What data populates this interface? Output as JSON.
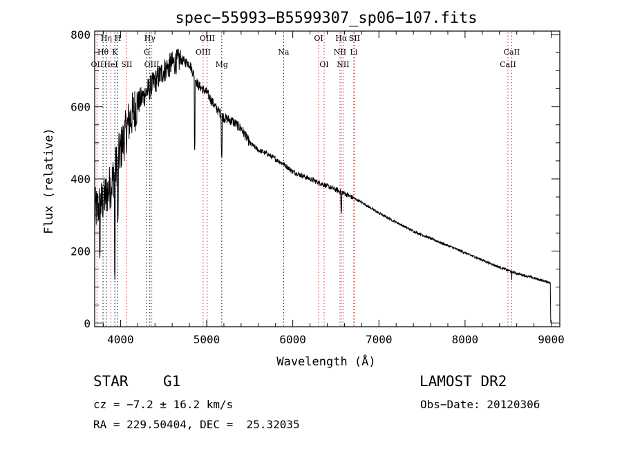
{
  "chart_data": {
    "type": "line",
    "title": "spec−55993−B5599307_sp06−107.fits",
    "xlabel": "Wavelength (Å)",
    "ylabel": "Flux (relative)",
    "xlim": [
      3700,
      9100
    ],
    "ylim": [
      -10,
      810
    ],
    "xticks": [
      4000,
      5000,
      6000,
      7000,
      8000,
      9000
    ],
    "yticks": [
      0,
      200,
      400,
      600,
      800
    ],
    "grid": false,
    "line_colors": {
      "black": "#000000",
      "red": "#dd2222"
    },
    "spectrum_envelope": {
      "wavelength": [
        3700,
        3800,
        3900,
        4000,
        4100,
        4200,
        4300,
        4400,
        4500,
        4600,
        4700,
        4800,
        4900,
        5000,
        5100,
        5200,
        5300,
        5400,
        5500,
        5600,
        5700,
        5800,
        5900,
        6000,
        6200,
        6400,
        6600,
        6800,
        7000,
        7200,
        7400,
        7600,
        7800,
        8000,
        8200,
        8400,
        8600,
        8800,
        8990
      ],
      "flux": [
        310,
        340,
        390,
        480,
        560,
        610,
        640,
        670,
        700,
        720,
        730,
        720,
        660,
        640,
        600,
        570,
        560,
        540,
        500,
        480,
        470,
        455,
        440,
        420,
        400,
        380,
        360,
        335,
        305,
        280,
        255,
        235,
        215,
        195,
        175,
        155,
        138,
        125,
        112
      ]
    },
    "spectrum_drops": [
      {
        "wavelength": 3934,
        "flux": 120
      },
      {
        "wavelength": 3968,
        "flux": 270
      },
      {
        "wavelength": 3760,
        "flux": 180
      },
      {
        "wavelength": 4861,
        "flux": 480
      },
      {
        "wavelength": 5175,
        "flux": 450
      },
      {
        "wavelength": 6563,
        "flux": 295
      },
      {
        "wavelength": 8542,
        "flux": 120
      },
      {
        "wavelength": 8995,
        "flux": 0
      }
    ],
    "line_markers": [
      {
        "label": "Hη",
        "wavelength": 3835,
        "color": "black",
        "row": 0
      },
      {
        "label": "H",
        "wavelength": 3968,
        "color": "black",
        "row": 0
      },
      {
        "label": "Hθ",
        "wavelength": 3797,
        "color": "black",
        "row": 1
      },
      {
        "label": "K",
        "wavelength": 3934,
        "color": "black",
        "row": 1
      },
      {
        "label": "OII",
        "wavelength": 3727,
        "color": "red",
        "row": 2
      },
      {
        "label": "HeI",
        "wavelength": 3889,
        "color": "red",
        "row": 2
      },
      {
        "label": "SII",
        "wavelength": 4072,
        "color": "red",
        "row": 2
      },
      {
        "label": "Hγ",
        "wavelength": 4340,
        "color": "black",
        "row": 0
      },
      {
        "label": "G",
        "wavelength": 4304,
        "color": "black",
        "row": 1
      },
      {
        "label": "OIII",
        "wavelength": 4363,
        "color": "red",
        "row": 2
      },
      {
        "label": "OIII",
        "wavelength": 5007,
        "color": "red",
        "row": 0
      },
      {
        "label": "OIII",
        "wavelength": 4959,
        "color": "red",
        "row": 1
      },
      {
        "label": "Mg",
        "wavelength": 5175,
        "color": "black",
        "row": 2
      },
      {
        "label": "Na",
        "wavelength": 5893,
        "color": "black",
        "row": 1
      },
      {
        "label": "OI",
        "wavelength": 6300,
        "color": "red",
        "row": 0
      },
      {
        "label": "OI",
        "wavelength": 6364,
        "color": "red",
        "row": 2
      },
      {
        "label": "Hα",
        "wavelength": 6563,
        "color": "red",
        "row": 0
      },
      {
        "label": "SII",
        "wavelength": 6716,
        "color": "red",
        "row": 0
      },
      {
        "label": "NII",
        "wavelength": 6548,
        "color": "red",
        "row": 1
      },
      {
        "label": "Li",
        "wavelength": 6708,
        "color": "red",
        "row": 1
      },
      {
        "label": "NII",
        "wavelength": 6584,
        "color": "red",
        "row": 2
      },
      {
        "label": "CaII",
        "wavelength": 8542,
        "color": "red",
        "row": 1
      },
      {
        "label": "CaII",
        "wavelength": 8498,
        "color": "red",
        "row": 2
      }
    ]
  },
  "info": {
    "class": "STAR",
    "subclass": "G1",
    "survey": "LAMOST DR2",
    "cz": "cz = −7.2 ± 16.2 km/s",
    "obs_date": "Obs−Date: 20120306",
    "coords": "RA = 229.50404, DEC =  25.32035"
  }
}
